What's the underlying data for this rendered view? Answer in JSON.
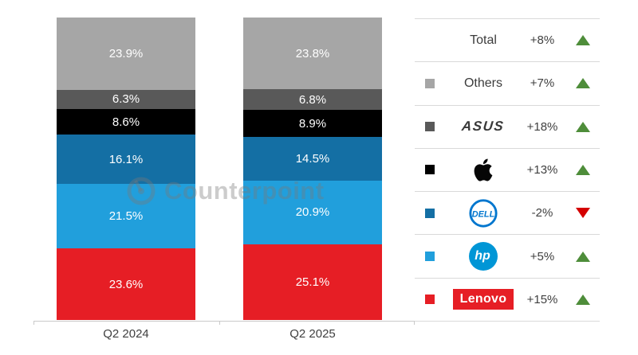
{
  "watermark": {
    "text": "Counterpoint"
  },
  "chart_data": {
    "type": "bar",
    "variant": "stacked",
    "title": "",
    "categories": [
      "Q2 2024",
      "Q2 2025"
    ],
    "series": [
      {
        "name": "Others",
        "color": "#a6a6a6",
        "values": [
          23.9,
          23.8
        ]
      },
      {
        "name": "ASUS",
        "color": "#595959",
        "values": [
          6.3,
          6.8
        ]
      },
      {
        "name": "Apple",
        "color": "#000000",
        "values": [
          8.6,
          8.9
        ]
      },
      {
        "name": "Dell",
        "color": "#146fa4",
        "values": [
          16.1,
          14.5
        ]
      },
      {
        "name": "HP",
        "color": "#219fdc",
        "values": [
          21.5,
          20.9
        ]
      },
      {
        "name": "Lenovo",
        "color": "#e61e25",
        "values": [
          23.6,
          25.1
        ]
      }
    ],
    "stack_order_note": "listed top-to-bottom of each bar",
    "value_suffix": "%",
    "ylim": [
      0,
      100
    ],
    "grid": false,
    "legend_position": "right"
  },
  "legend": {
    "rows": [
      {
        "id": "total",
        "label": "Total",
        "style": "text",
        "swatch": null,
        "logo_color": "#3c3c3c",
        "change": "+8%",
        "direction": "up"
      },
      {
        "id": "others",
        "label": "Others",
        "style": "text",
        "swatch": "#a6a6a6",
        "logo_color": "#3c3c3c",
        "change": "+7%",
        "direction": "up"
      },
      {
        "id": "asus",
        "label": "ASUS",
        "style": "asus",
        "swatch": "#595959",
        "logo_color": "#3a3a3a",
        "change": "+18%",
        "direction": "up"
      },
      {
        "id": "apple",
        "label": "Apple",
        "style": "apple",
        "swatch": "#000000",
        "logo_color": "#060606",
        "change": "+13%",
        "direction": "up"
      },
      {
        "id": "dell",
        "label": "DELL",
        "style": "dell",
        "swatch": "#146fa4",
        "logo_color": "#0076ce",
        "change": "-2%",
        "direction": "down"
      },
      {
        "id": "hp",
        "label": "hp",
        "style": "hp",
        "swatch": "#219fdc",
        "logo_color": "#0096d6",
        "change": "+5%",
        "direction": "up"
      },
      {
        "id": "lenovo",
        "label": "Lenovo",
        "style": "lenovo",
        "swatch": "#e61e25",
        "logo_color": "#e61e25",
        "change": "+15%",
        "direction": "up"
      }
    ],
    "up_color": "#4e8d3a",
    "down_color": "#d40000"
  }
}
